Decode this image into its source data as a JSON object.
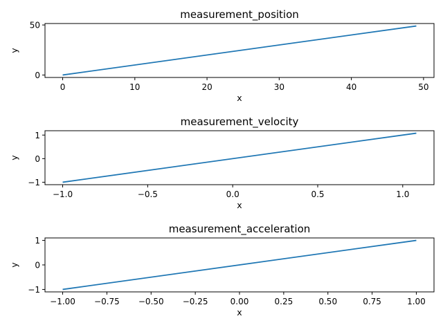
{
  "chart_data": [
    {
      "type": "line",
      "title": "measurement_position",
      "xlabel": "x",
      "ylabel": "y",
      "xlim": [
        -2.45,
        51.45
      ],
      "ylim": [
        -2.45,
        51.45
      ],
      "xticks": [
        0,
        10,
        20,
        30,
        40,
        50
      ],
      "xtick_labels": [
        "0",
        "10",
        "20",
        "30",
        "40",
        "50"
      ],
      "yticks": [
        0,
        50
      ],
      "ytick_labels": [
        "0",
        "50"
      ],
      "series": [
        {
          "x": [
            0,
            49
          ],
          "y": [
            0,
            49
          ],
          "color": "#1f77b4"
        }
      ]
    },
    {
      "type": "line",
      "title": "measurement_velocity",
      "xlabel": "x",
      "ylabel": "y",
      "xlim": [
        -1.104,
        1.184
      ],
      "ylim": [
        -1.104,
        1.184
      ],
      "xticks": [
        -1.0,
        -0.5,
        0.0,
        0.5,
        1.0
      ],
      "xtick_labels": [
        "−1.0",
        "−0.5",
        "0.0",
        "0.5",
        "1.0"
      ],
      "yticks": [
        -1,
        0,
        1
      ],
      "ytick_labels": [
        "−1",
        "0",
        "1"
      ],
      "series": [
        {
          "x": [
            -1.0,
            1.08
          ],
          "y": [
            -1.0,
            1.08
          ],
          "color": "#1f77b4"
        }
      ]
    },
    {
      "type": "line",
      "title": "measurement_acceleration",
      "xlabel": "x",
      "ylabel": "y",
      "xlim": [
        -1.1,
        1.1
      ],
      "ylim": [
        -1.1,
        1.1
      ],
      "xticks": [
        -1.0,
        -0.75,
        -0.5,
        -0.25,
        0.0,
        0.25,
        0.5,
        0.75,
        1.0
      ],
      "xtick_labels": [
        "−1.00",
        "−0.75",
        "−0.50",
        "−0.25",
        "0.00",
        "0.25",
        "0.50",
        "0.75",
        "1.00"
      ],
      "yticks": [
        -1,
        0,
        1
      ],
      "ytick_labels": [
        "−1",
        "0",
        "1"
      ],
      "series": [
        {
          "x": [
            -1.0,
            1.0
          ],
          "y": [
            -1.0,
            1.0
          ],
          "color": "#1f77b4"
        }
      ]
    }
  ]
}
